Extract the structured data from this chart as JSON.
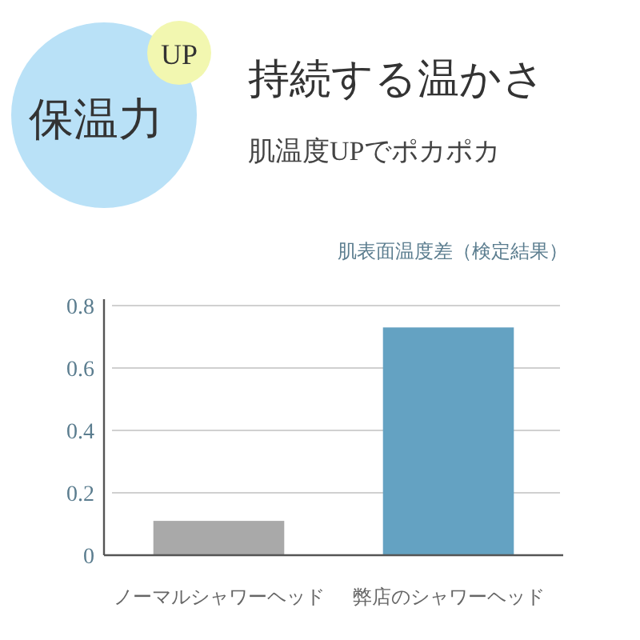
{
  "chart_data": {
    "type": "bar",
    "title": "持続する温かさ",
    "subtitle": "肌温度UPでポカポカ",
    "ylabel": "肌表面温度差（検定結果）",
    "annotations": [
      "保温力",
      "UP"
    ],
    "categories": [
      "ノーマルシャワーヘッド",
      "弊店のシャワーヘッド"
    ],
    "values": [
      0.11,
      0.73
    ],
    "colors": [
      "#a9a9a9",
      "#64a2c2"
    ],
    "ylim": [
      0,
      0.8
    ],
    "yticks": [
      0,
      0.2,
      0.4,
      0.6,
      0.8
    ],
    "grid": "y"
  }
}
